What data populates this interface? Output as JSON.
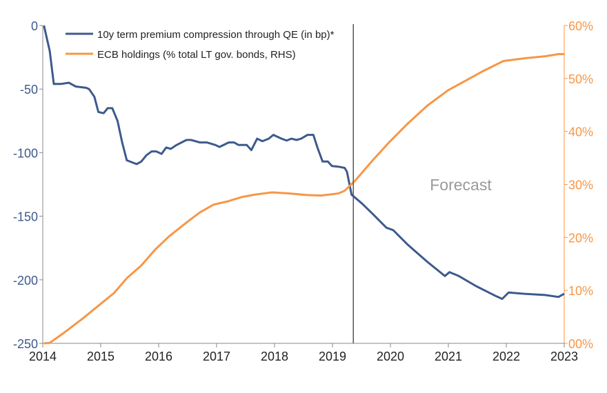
{
  "chart_data": {
    "type": "line",
    "title": "",
    "annotation": "Forecast",
    "forecast_start": 2019.36,
    "x_ticks": [
      "2014",
      "2015",
      "2016",
      "2017",
      "2018",
      "2019",
      "2020",
      "2021",
      "2022",
      "2023"
    ],
    "xlim": [
      2014,
      2023
    ],
    "y_left": {
      "ylim": [
        -250,
        0
      ],
      "ticks": [
        "0",
        "-50",
        "-100",
        "-150",
        "-200",
        "-250"
      ],
      "tick_values": [
        0,
        -50,
        -100,
        -150,
        -200,
        -250
      ]
    },
    "y_right": {
      "ylim": [
        0,
        60
      ],
      "ticks": [
        "60%",
        "50%",
        "40%",
        "30%",
        "20%",
        "10%",
        "00%"
      ],
      "tick_values": [
        60,
        50,
        40,
        30,
        20,
        10,
        0
      ],
      "color": "#F79646"
    },
    "grid": false,
    "legend": "top-left",
    "series": [
      {
        "name": "10y term premium compression through QE (in bp)*",
        "axis": "left",
        "color": "#3C5A8C",
        "x": [
          2014.02,
          2014.12,
          2014.19,
          2014.31,
          2014.45,
          2014.57,
          2014.75,
          2014.8,
          2014.89,
          2014.96,
          2015.05,
          2015.12,
          2015.2,
          2015.29,
          2015.37,
          2015.45,
          2015.62,
          2015.7,
          2015.79,
          2015.88,
          2015.96,
          2016.05,
          2016.13,
          2016.21,
          2016.31,
          2016.48,
          2016.56,
          2016.71,
          2016.83,
          2016.98,
          2017.05,
          2017.21,
          2017.3,
          2017.38,
          2017.52,
          2017.6,
          2017.7,
          2017.79,
          2017.9,
          2017.98,
          2018.12,
          2018.21,
          2018.29,
          2018.38,
          2018.46,
          2018.57,
          2018.67,
          2018.74,
          2018.83,
          2018.92,
          2018.99,
          2019.1,
          2019.21,
          2019.25,
          2019.33,
          2019.51,
          2019.69,
          2019.93,
          2020.05,
          2020.29,
          2020.64,
          2020.94,
          2021.02,
          2021.18,
          2021.48,
          2021.83,
          2021.93,
          2022.04,
          2022.31,
          2022.67,
          2022.9,
          2023.0
        ],
        "y": [
          0,
          -20,
          -46,
          -46,
          -45,
          -48,
          -49,
          -50,
          -56,
          -68,
          -69,
          -65,
          -65,
          -75,
          -92,
          -106,
          -109,
          -107,
          -102,
          -99,
          -99,
          -101,
          -96,
          -97,
          -94,
          -90,
          -90,
          -92,
          -92,
          -94,
          -95.5,
          -92,
          -92,
          -94,
          -94,
          -98,
          -89,
          -91,
          -89,
          -86,
          -89,
          -90.5,
          -89,
          -90,
          -89,
          -86,
          -86,
          -96,
          -107,
          -107,
          -110.5,
          -111,
          -112,
          -115,
          -133,
          -140,
          -148,
          -159,
          -161,
          -172,
          -186,
          -197,
          -194,
          -197,
          -205,
          -213,
          -215,
          -210,
          -211,
          -212,
          -213.5,
          -211
        ]
      },
      {
        "name": "ECB holdings (% total LT gov. bonds, RHS)",
        "axis": "right",
        "color": "#F79646",
        "x": [
          2014.02,
          2014.12,
          2014.33,
          2014.69,
          2015.05,
          2015.23,
          2015.46,
          2015.7,
          2015.94,
          2016.18,
          2016.48,
          2016.71,
          2016.95,
          2017.19,
          2017.43,
          2017.67,
          2017.96,
          2018.26,
          2018.56,
          2018.8,
          2019.1,
          2019.21,
          2019.39,
          2019.69,
          2019.99,
          2020.29,
          2020.64,
          2021.0,
          2021.3,
          2021.6,
          2021.95,
          2022.31,
          2022.67,
          2022.9,
          2023.0
        ],
        "y": [
          0,
          0.1,
          1.7,
          4.7,
          7.9,
          9.5,
          12.4,
          14.7,
          17.7,
          20.2,
          22.8,
          24.7,
          26.2,
          26.8,
          27.6,
          28.1,
          28.5,
          28.3,
          28.0,
          27.9,
          28.3,
          28.8,
          30.7,
          34.5,
          38.1,
          41.4,
          44.9,
          47.8,
          49.6,
          51.4,
          53.3,
          53.8,
          54.2,
          54.6,
          54.6
        ]
      }
    ]
  }
}
